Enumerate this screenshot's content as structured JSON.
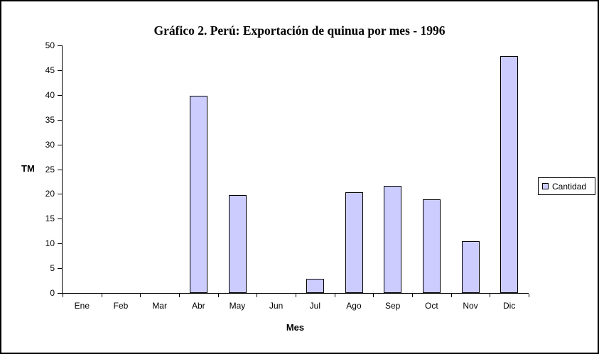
{
  "frame": {
    "background": "#ffffff",
    "border_color": "#000000"
  },
  "chart_data": {
    "type": "bar",
    "title": "Gráfico 2. Perú: Exportación de quinua por mes - 1996",
    "categories": [
      "Ene",
      "Feb",
      "Mar",
      "Abr",
      "May",
      "Jun",
      "Jul",
      "Ago",
      "Sep",
      "Oct",
      "Nov",
      "Dic"
    ],
    "series": [
      {
        "name": "Cantidad",
        "values": [
          0,
          0,
          0,
          39.8,
          19.8,
          0,
          2.8,
          20.3,
          21.6,
          18.9,
          10.5,
          47.8
        ],
        "fill_color": "#CCCCFF",
        "border_color": "#000000"
      }
    ],
    "xlabel": "Mes",
    "ylabel": "TM",
    "ylim": [
      0,
      50
    ],
    "ytick_step": 5,
    "ytick_labels": [
      "0",
      "5",
      "10",
      "15",
      "20",
      "25",
      "30",
      "35",
      "40",
      "45",
      "50"
    ],
    "grid": false,
    "legend_position": "right",
    "legend_items": [
      "Cantidad"
    ]
  }
}
